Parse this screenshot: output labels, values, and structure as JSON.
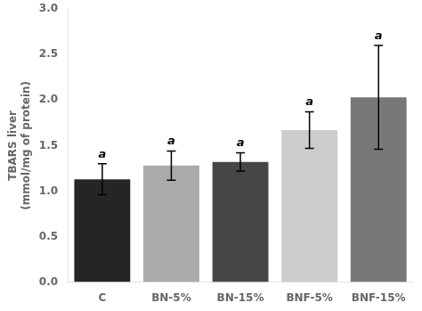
{
  "chart_data": {
    "type": "bar",
    "categories": [
      "C",
      "BN-5%",
      "BN-15%",
      "BNF-5%",
      "BNF-15%"
    ],
    "values": [
      1.13,
      1.28,
      1.32,
      1.67,
      2.03
    ],
    "errors": [
      0.17,
      0.16,
      0.1,
      0.2,
      0.57
    ],
    "annotations": [
      "a",
      "a",
      "a",
      "a",
      "a"
    ],
    "colors": [
      "#252525",
      "#aaaaaa",
      "#464646",
      "#cccccc",
      "#787878"
    ],
    "ylabel": "TBARS liver\n(mmol/mg of protein)",
    "ylim": [
      0.0,
      3.0
    ],
    "yticks": [
      {
        "value": 0,
        "label": "0.0"
      },
      0.5,
      {
        "value": 1,
        "label": "1.0"
      },
      1.5,
      {
        "value": 2,
        "label": "2.0"
      },
      2.5,
      {
        "value": 3,
        "label": "3.0"
      }
    ],
    "grid": false
  }
}
